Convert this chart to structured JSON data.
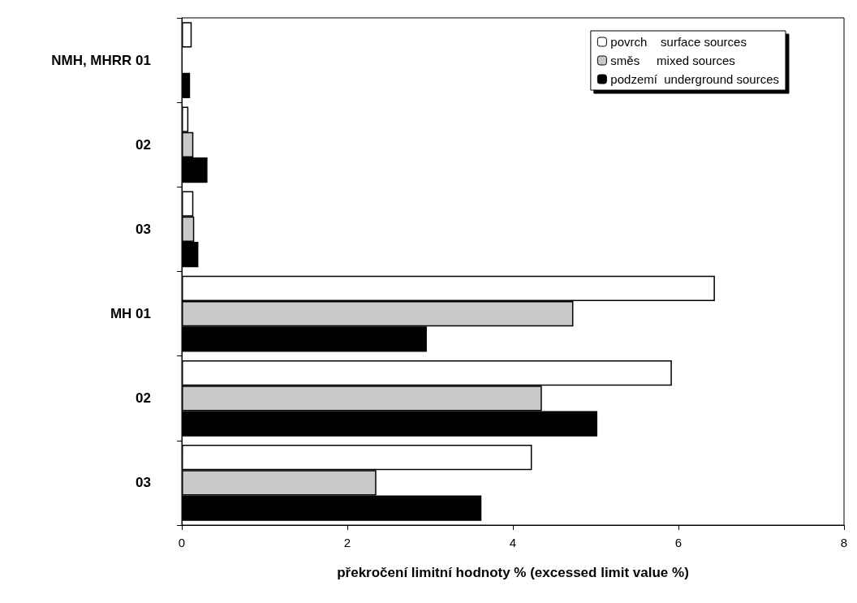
{
  "chart_data": {
    "type": "bar",
    "orientation": "horizontal",
    "xlabel": "překročení limitní hodnoty % (excessed limit value %)",
    "categories": [
      "NMH, MHRR 01",
      "02",
      "03",
      "MH 01",
      "02",
      "03"
    ],
    "series": [
      {
        "name": "povrch    surface sources",
        "color": "#ffffff",
        "values": [
          0.12,
          0.08,
          0.14,
          6.44,
          5.92,
          4.23
        ]
      },
      {
        "name": "směs     mixed sources",
        "color": "#c8c8c8",
        "values": [
          null,
          0.14,
          0.15,
          4.73,
          4.35,
          2.35
        ]
      },
      {
        "name": "podzemí  underground sources",
        "color": "#000000",
        "values": [
          0.1,
          0.31,
          0.2,
          2.96,
          5.02,
          3.62
        ]
      }
    ],
    "xlim": [
      0,
      8
    ],
    "xticks": [
      0,
      2,
      4,
      6,
      8
    ],
    "grid": false,
    "legend": "top right"
  }
}
